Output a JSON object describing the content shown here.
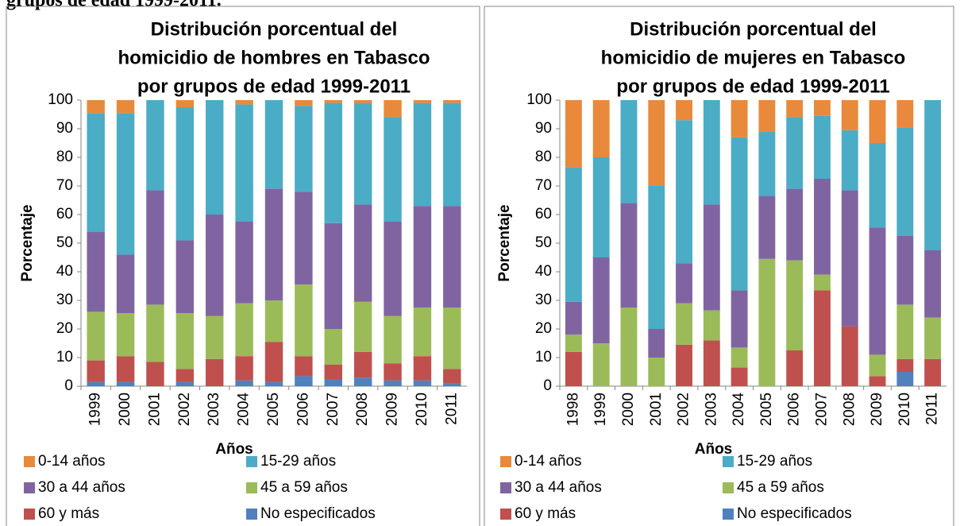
{
  "caption": "grupos de edad 1999-2011.",
  "chart_data": [
    {
      "type": "bar",
      "stacked": true,
      "title": [
        "Distribución porcentual del",
        "homicidio de hombres en Tabasco",
        "por grupos de edad 1999-2011"
      ],
      "xlabel": "Años",
      "ylabel": "Porcentaje",
      "ylim": [
        0,
        100
      ],
      "yticks": [
        0,
        10,
        20,
        30,
        40,
        50,
        60,
        70,
        80,
        90,
        100
      ],
      "categories": [
        "1999",
        "2000",
        "2001",
        "2002",
        "2003",
        "2004",
        "2005",
        "2006",
        "2007",
        "2008",
        "2009",
        "2010",
        "2011"
      ],
      "series": [
        {
          "name": "0-14 años",
          "color": "#e8893c",
          "values": [
            4.5,
            4.5,
            0,
            2.5,
            0,
            1.5,
            0,
            2,
            1,
            1,
            6,
            1,
            1
          ]
        },
        {
          "name": "15-29 años",
          "color": "#4bacc6",
          "values": [
            41.5,
            49.5,
            31.5,
            46.5,
            40,
            41,
            31,
            30,
            42,
            35.5,
            36.5,
            36,
            36
          ]
        },
        {
          "name": "30 a 44 años",
          "color": "#8064a2",
          "values": [
            28,
            20.5,
            40,
            25.5,
            35.5,
            28.5,
            39,
            32.5,
            37,
            34,
            33,
            35.5,
            35.5
          ]
        },
        {
          "name": "45 a 59 años",
          "color": "#9bbb59",
          "values": [
            17,
            15,
            20,
            19.5,
            15,
            18.5,
            14.5,
            25,
            12.5,
            17.5,
            16.5,
            17,
            21.5
          ]
        },
        {
          "name": "60 y más",
          "color": "#c0504d",
          "values": [
            7.5,
            9,
            8.5,
            4.5,
            9.5,
            8.5,
            14,
            7,
            5,
            9,
            6,
            8.5,
            5
          ]
        },
        {
          "name": "No especificados",
          "color": "#4f81bd",
          "values": [
            1.5,
            1.5,
            0,
            1.5,
            0,
            2,
            1.5,
            3.5,
            2.5,
            3,
            2,
            2,
            1
          ]
        }
      ]
    },
    {
      "type": "bar",
      "stacked": true,
      "title": [
        "Distribución porcentual del",
        "homicidio de mujeres en Tabasco",
        "por grupos de edad 1999-2011"
      ],
      "xlabel": "Años",
      "ylabel": "Porcentaje",
      "ylim": [
        0,
        100
      ],
      "yticks": [
        0,
        10,
        20,
        30,
        40,
        50,
        60,
        70,
        80,
        90,
        100
      ],
      "categories": [
        "1998",
        "1999",
        "2000",
        "2001",
        "2002",
        "2003",
        "2004",
        "2005",
        "2006",
        "2007",
        "2008",
        "2009",
        "2010",
        "2011"
      ],
      "series": [
        {
          "name": "0-14 años",
          "color": "#e8893c",
          "values": [
            23.5,
            20,
            0,
            30,
            7,
            0,
            13,
            11,
            6,
            5.5,
            10.5,
            15,
            9.5,
            0
          ]
        },
        {
          "name": "15-29 años",
          "color": "#4bacc6",
          "values": [
            47,
            35,
            36,
            50,
            50,
            36.5,
            53.5,
            22.5,
            25,
            22,
            21,
            29.5,
            38,
            52.5
          ]
        },
        {
          "name": "30 a 44 años",
          "color": "#8064a2",
          "values": [
            11.5,
            30,
            36.5,
            10,
            14,
            37,
            20,
            22,
            25,
            33.5,
            47.5,
            44.5,
            24,
            23.5
          ]
        },
        {
          "name": "45 a 59 años",
          "color": "#9bbb59",
          "values": [
            6,
            15,
            27.5,
            10,
            14.5,
            10.5,
            7,
            44.5,
            31.5,
            5.5,
            0,
            7.5,
            19,
            14.5
          ]
        },
        {
          "name": "60 y más",
          "color": "#c0504d",
          "values": [
            12,
            0,
            0,
            0,
            14.5,
            16,
            6.5,
            0,
            12.5,
            33.5,
            21,
            3.5,
            4.5,
            9.5
          ]
        },
        {
          "name": "No especificados",
          "color": "#4f81bd",
          "values": [
            0,
            0,
            0,
            0,
            0,
            0,
            0,
            0,
            0,
            0,
            0,
            0,
            5,
            0
          ]
        }
      ]
    }
  ]
}
